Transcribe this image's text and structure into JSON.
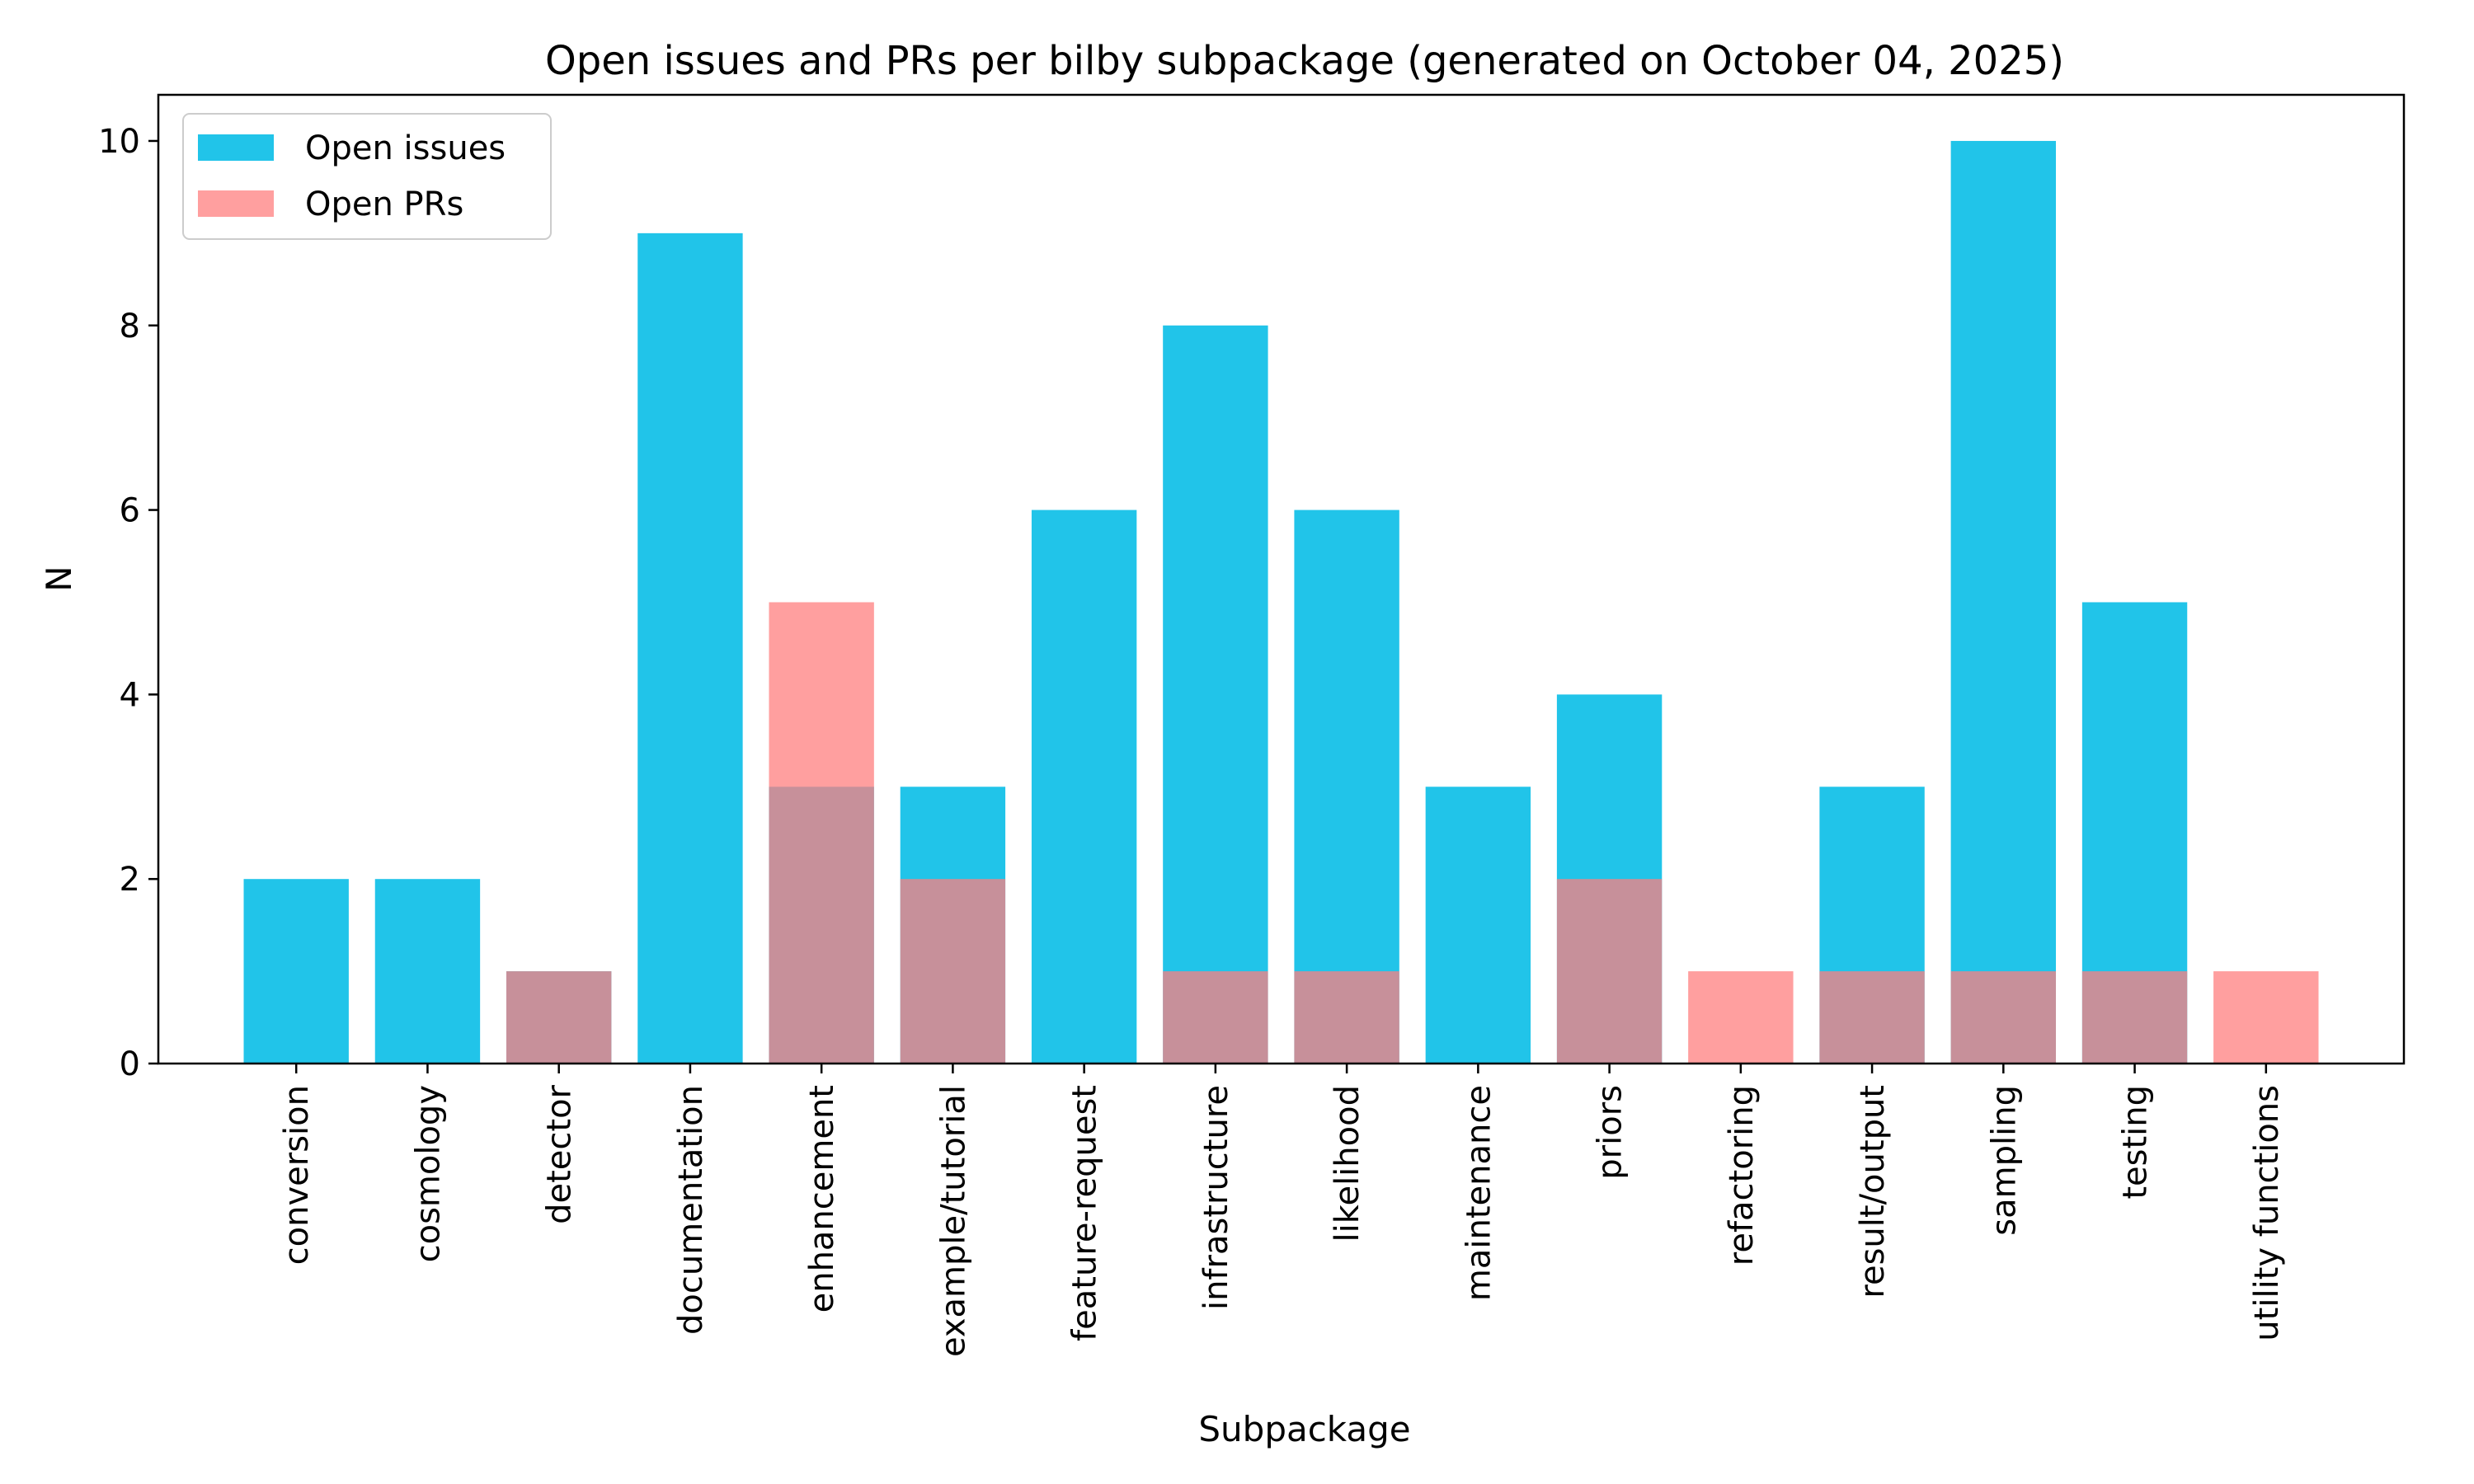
{
  "chart_data": {
    "type": "bar",
    "title": "Open issues and PRs per bilby subpackage (generated on October 04, 2025)",
    "xlabel": "Subpackage",
    "ylabel": "N",
    "ylim": [
      0,
      10.5
    ],
    "yticks": [
      0,
      2,
      4,
      6,
      8,
      10
    ],
    "grid": false,
    "legend_position": "top-left",
    "categories": [
      "conversion",
      "cosmology",
      "detector",
      "documentation",
      "enhancement",
      "example/tutorial",
      "feature-request",
      "infrastructure",
      "likelihood",
      "maintenance",
      "priors",
      "refactoring",
      "result/output",
      "sampling",
      "testing",
      "utility functions"
    ],
    "series": [
      {
        "name": "Open issues",
        "color": "#00bbe6",
        "alpha": 0.87,
        "values": [
          2,
          2,
          1,
          9,
          3,
          3,
          6,
          8,
          6,
          3,
          4,
          0,
          3,
          10,
          5,
          0
        ]
      },
      {
        "name": "Open PRs",
        "color": "#ff7f7f",
        "alpha": 0.75,
        "values": [
          0,
          0,
          1,
          0,
          5,
          2,
          0,
          1,
          1,
          0,
          2,
          1,
          1,
          1,
          1,
          1
        ]
      }
    ]
  }
}
